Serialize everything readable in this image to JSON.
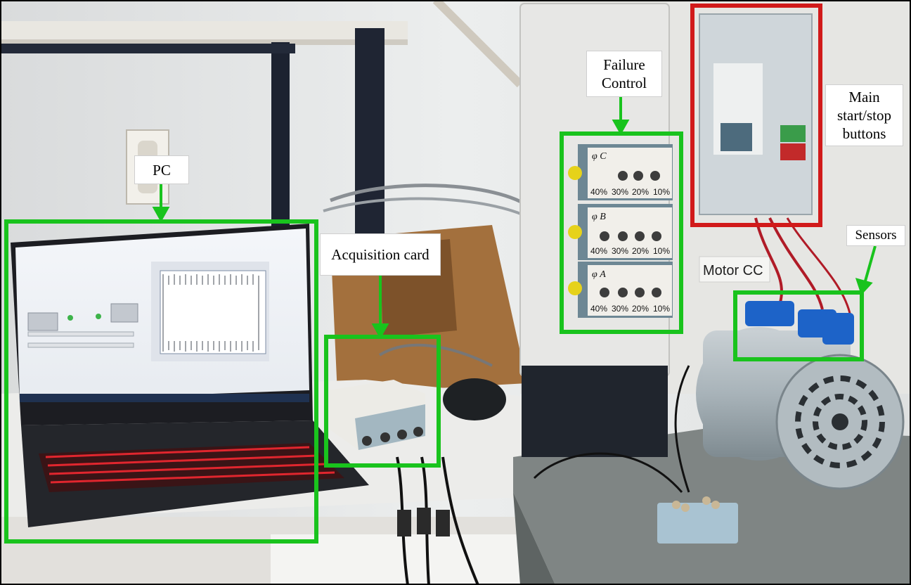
{
  "labels": {
    "pc": "PC",
    "acquisition": "Acquisition card",
    "failure": "Failure Control",
    "main": "Main start/stop buttons",
    "sensors": "Sensors",
    "motor": "Motor CC"
  },
  "panel_rows": [
    {
      "phase": "φ C",
      "levels": [
        "40%",
        "30%",
        "20%",
        "10%"
      ]
    },
    {
      "phase": "φ B",
      "levels": [
        "40%",
        "30%",
        "20%",
        "10%"
      ]
    },
    {
      "phase": "φ A",
      "levels": [
        "40%",
        "30%",
        "20%",
        "10%"
      ]
    }
  ],
  "colors": {
    "highlight_green": "#19c31d",
    "highlight_red": "#d11a1a"
  }
}
